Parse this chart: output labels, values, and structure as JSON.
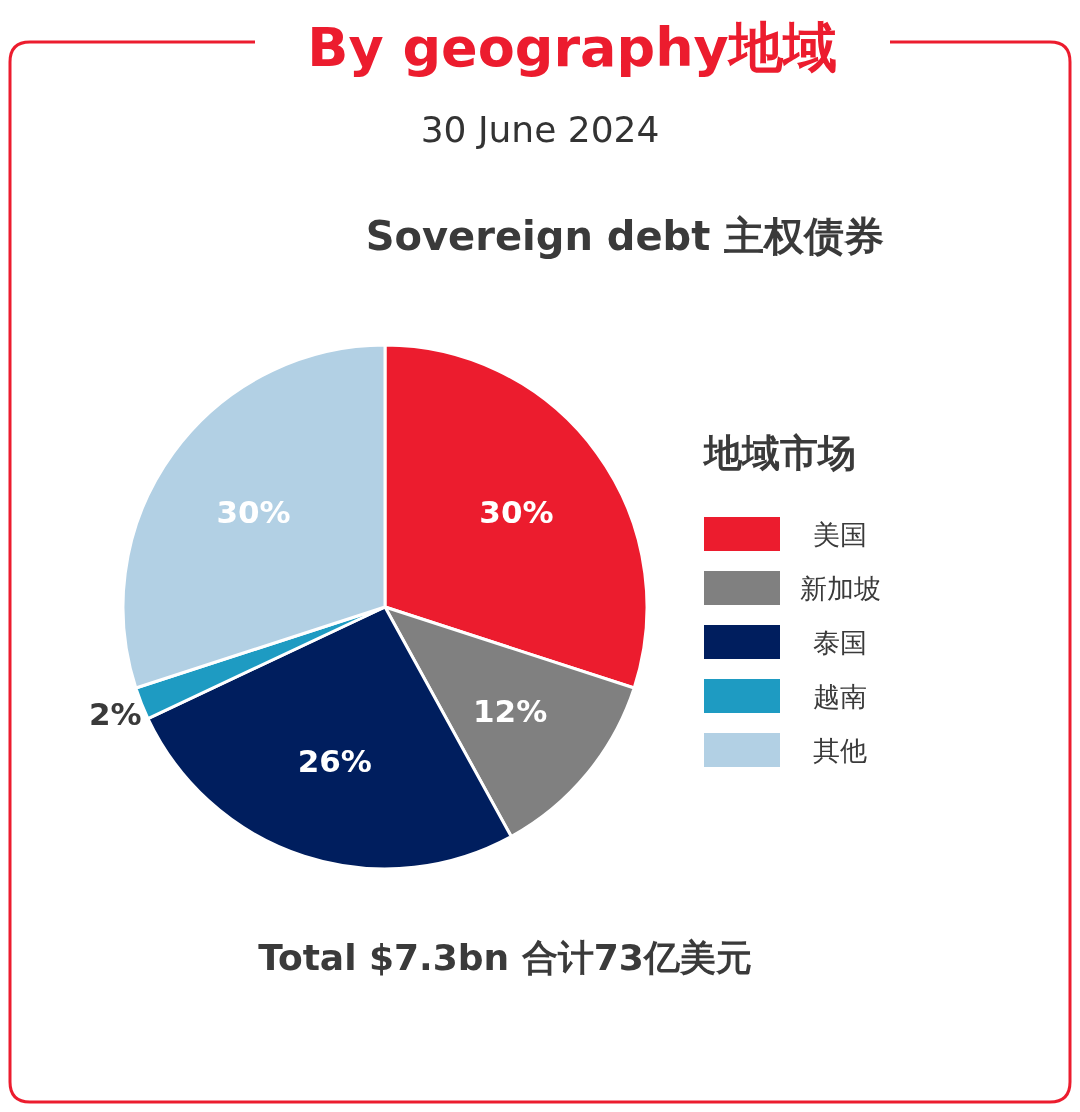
{
  "chart_data": {
    "type": "pie",
    "title": "By geography地域",
    "subtitle": "30 June 2024",
    "annotations": [
      "Sovereign debt 主权债券",
      "Total $7.3bn 合计73亿美元"
    ],
    "legend_title": "地域市场",
    "legend": "right",
    "categories": [
      "美国",
      "新加坡",
      "泰国",
      "越南",
      "其他"
    ],
    "values": [
      30,
      12,
      26,
      2,
      30
    ],
    "value_labels": [
      "30%",
      "12%",
      "26%",
      "2%",
      "30%"
    ],
    "colors": [
      "#ec1c2e",
      "#808080",
      "#001e5e",
      "#1e9bc2",
      "#b2d0e4"
    ]
  }
}
